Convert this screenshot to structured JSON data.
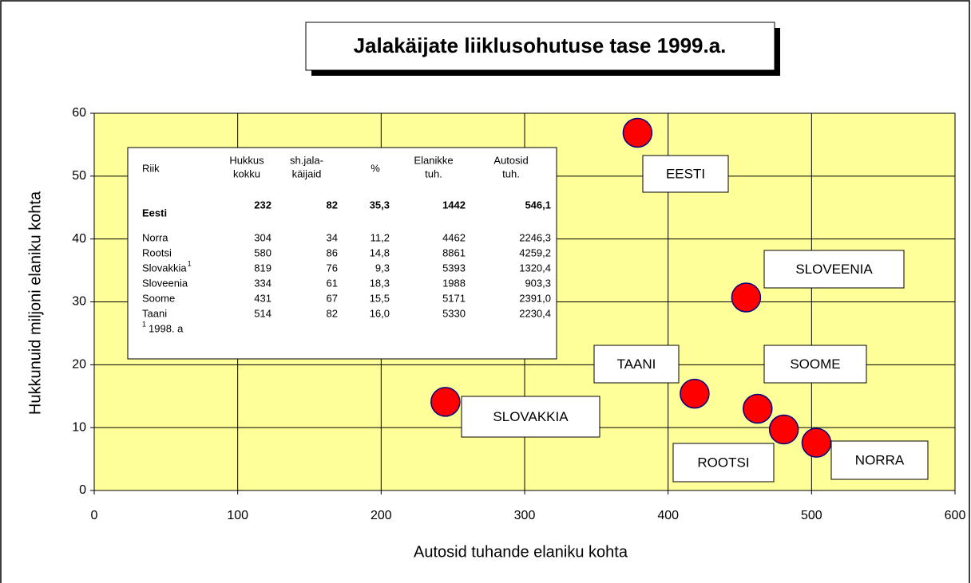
{
  "chart_data": {
    "type": "scatter",
    "title": "Jalakäijate liiklusohutuse tase 1999.a.",
    "x_label": "Autosid tuhande elaniku kohta",
    "y_label": "Hukkunuid miljoni elaniku kohta",
    "names": [
      "EESTI",
      "SLOVEENIA",
      "SOOME",
      "TAANI",
      "ROOTSI",
      "NORRA",
      "SLOVAKKIA"
    ],
    "x": [
      378.7,
      454.4,
      462.4,
      418.5,
      480.7,
      503.4,
      244.8
    ],
    "y": [
      56.9,
      30.7,
      13.0,
      15.4,
      9.7,
      7.6,
      14.1
    ],
    "color": "#ff0000",
    "edge_color": "#000080",
    "background": "#ffff99",
    "xlim": [
      0,
      600
    ],
    "xticks": [
      0,
      100,
      200,
      300,
      400,
      500,
      600
    ],
    "ylim": [
      0,
      60
    ],
    "yticks": [
      0,
      10,
      20,
      30,
      40,
      50,
      60
    ],
    "grid": true
  },
  "table": {
    "header": [
      [
        "Riik"
      ],
      [
        "Hukkus",
        "kokku"
      ],
      [
        "sh.jala-",
        "käijaid"
      ],
      [
        "%"
      ],
      [
        "Elanikke",
        "tuh."
      ],
      [
        "Autosid",
        "tuh."
      ]
    ],
    "rows": [
      {
        "name": "Eesti",
        "cells": [
          "232",
          "82",
          "35,3",
          "1442",
          "546,1"
        ]
      },
      {
        "name": "Norra",
        "cells": [
          "304",
          "34",
          "11,2",
          "4462",
          "2246,3"
        ]
      },
      {
        "name": "Rootsi",
        "cells": [
          "580",
          "86",
          "14,8",
          "8861",
          "4259,2"
        ]
      },
      {
        "name": "Slovakkia",
        "mark": "1",
        "cells": [
          "819",
          "76",
          "9,3",
          "5393",
          "1320,4"
        ]
      },
      {
        "name": "Sloveenia",
        "cells": [
          "334",
          "61",
          "18,3",
          "1988",
          "903,3"
        ]
      },
      {
        "name": "Soome",
        "cells": [
          "431",
          "67",
          "15,5",
          "5171",
          "2391,0"
        ]
      },
      {
        "name": "Taani",
        "cells": [
          "514",
          "82",
          "16,0",
          "5330",
          "2230,4"
        ]
      }
    ],
    "footnote": {
      "mark": "1",
      "text": "1998. a"
    }
  }
}
